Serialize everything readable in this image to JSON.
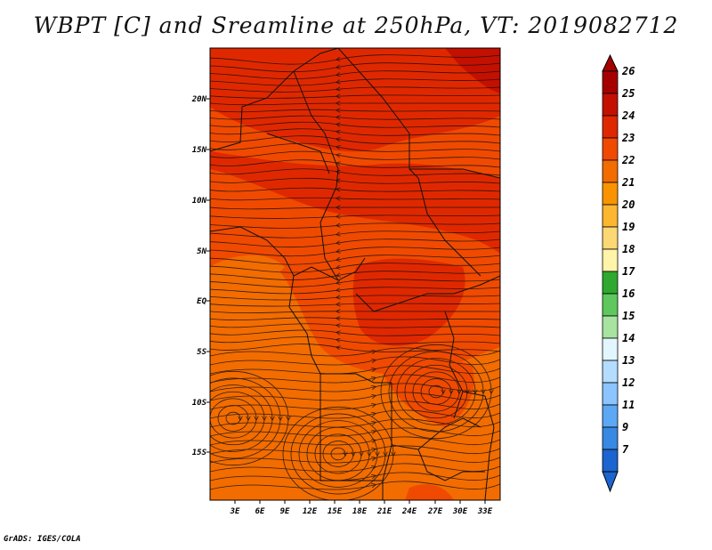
{
  "title": "WBPT [C] and Sreamline at 250hPa, VT: 2019082712",
  "credit": "GrADS: IGES/COLA",
  "map": {
    "variable": "WBPT [C]",
    "overlay": "Streamline",
    "level": "250hPa",
    "valid_time": "2019082712",
    "lat_labels": [
      "20N",
      "15N",
      "10N",
      "5N",
      "EQ",
      "5S",
      "10S",
      "15S"
    ],
    "lon_labels": [
      "3E",
      "6E",
      "9E",
      "12E",
      "15E",
      "18E",
      "21E",
      "24E",
      "27E",
      "30E",
      "33E"
    ],
    "fill_levels_present": [
      "22",
      "23",
      "24",
      "25"
    ]
  },
  "colorbar": {
    "labels": [
      "26",
      "25",
      "24",
      "23",
      "22",
      "21",
      "20",
      "19",
      "18",
      "17",
      "16",
      "15",
      "14",
      "13",
      "12",
      "11",
      "9",
      "7"
    ],
    "colors": [
      "#a50000",
      "#c41000",
      "#e02800",
      "#f04a00",
      "#f26c00",
      "#f99400",
      "#fcb630",
      "#fbd874",
      "#fff4a8",
      "#2ea82e",
      "#5ec85e",
      "#a6e4a0",
      "#e2f6ff",
      "#b4dcff",
      "#8cc4ff",
      "#5ca8f4",
      "#3888e4",
      "#1c64d0"
    ],
    "over_color": "#a50000",
    "under_color": "#1c64d0"
  }
}
